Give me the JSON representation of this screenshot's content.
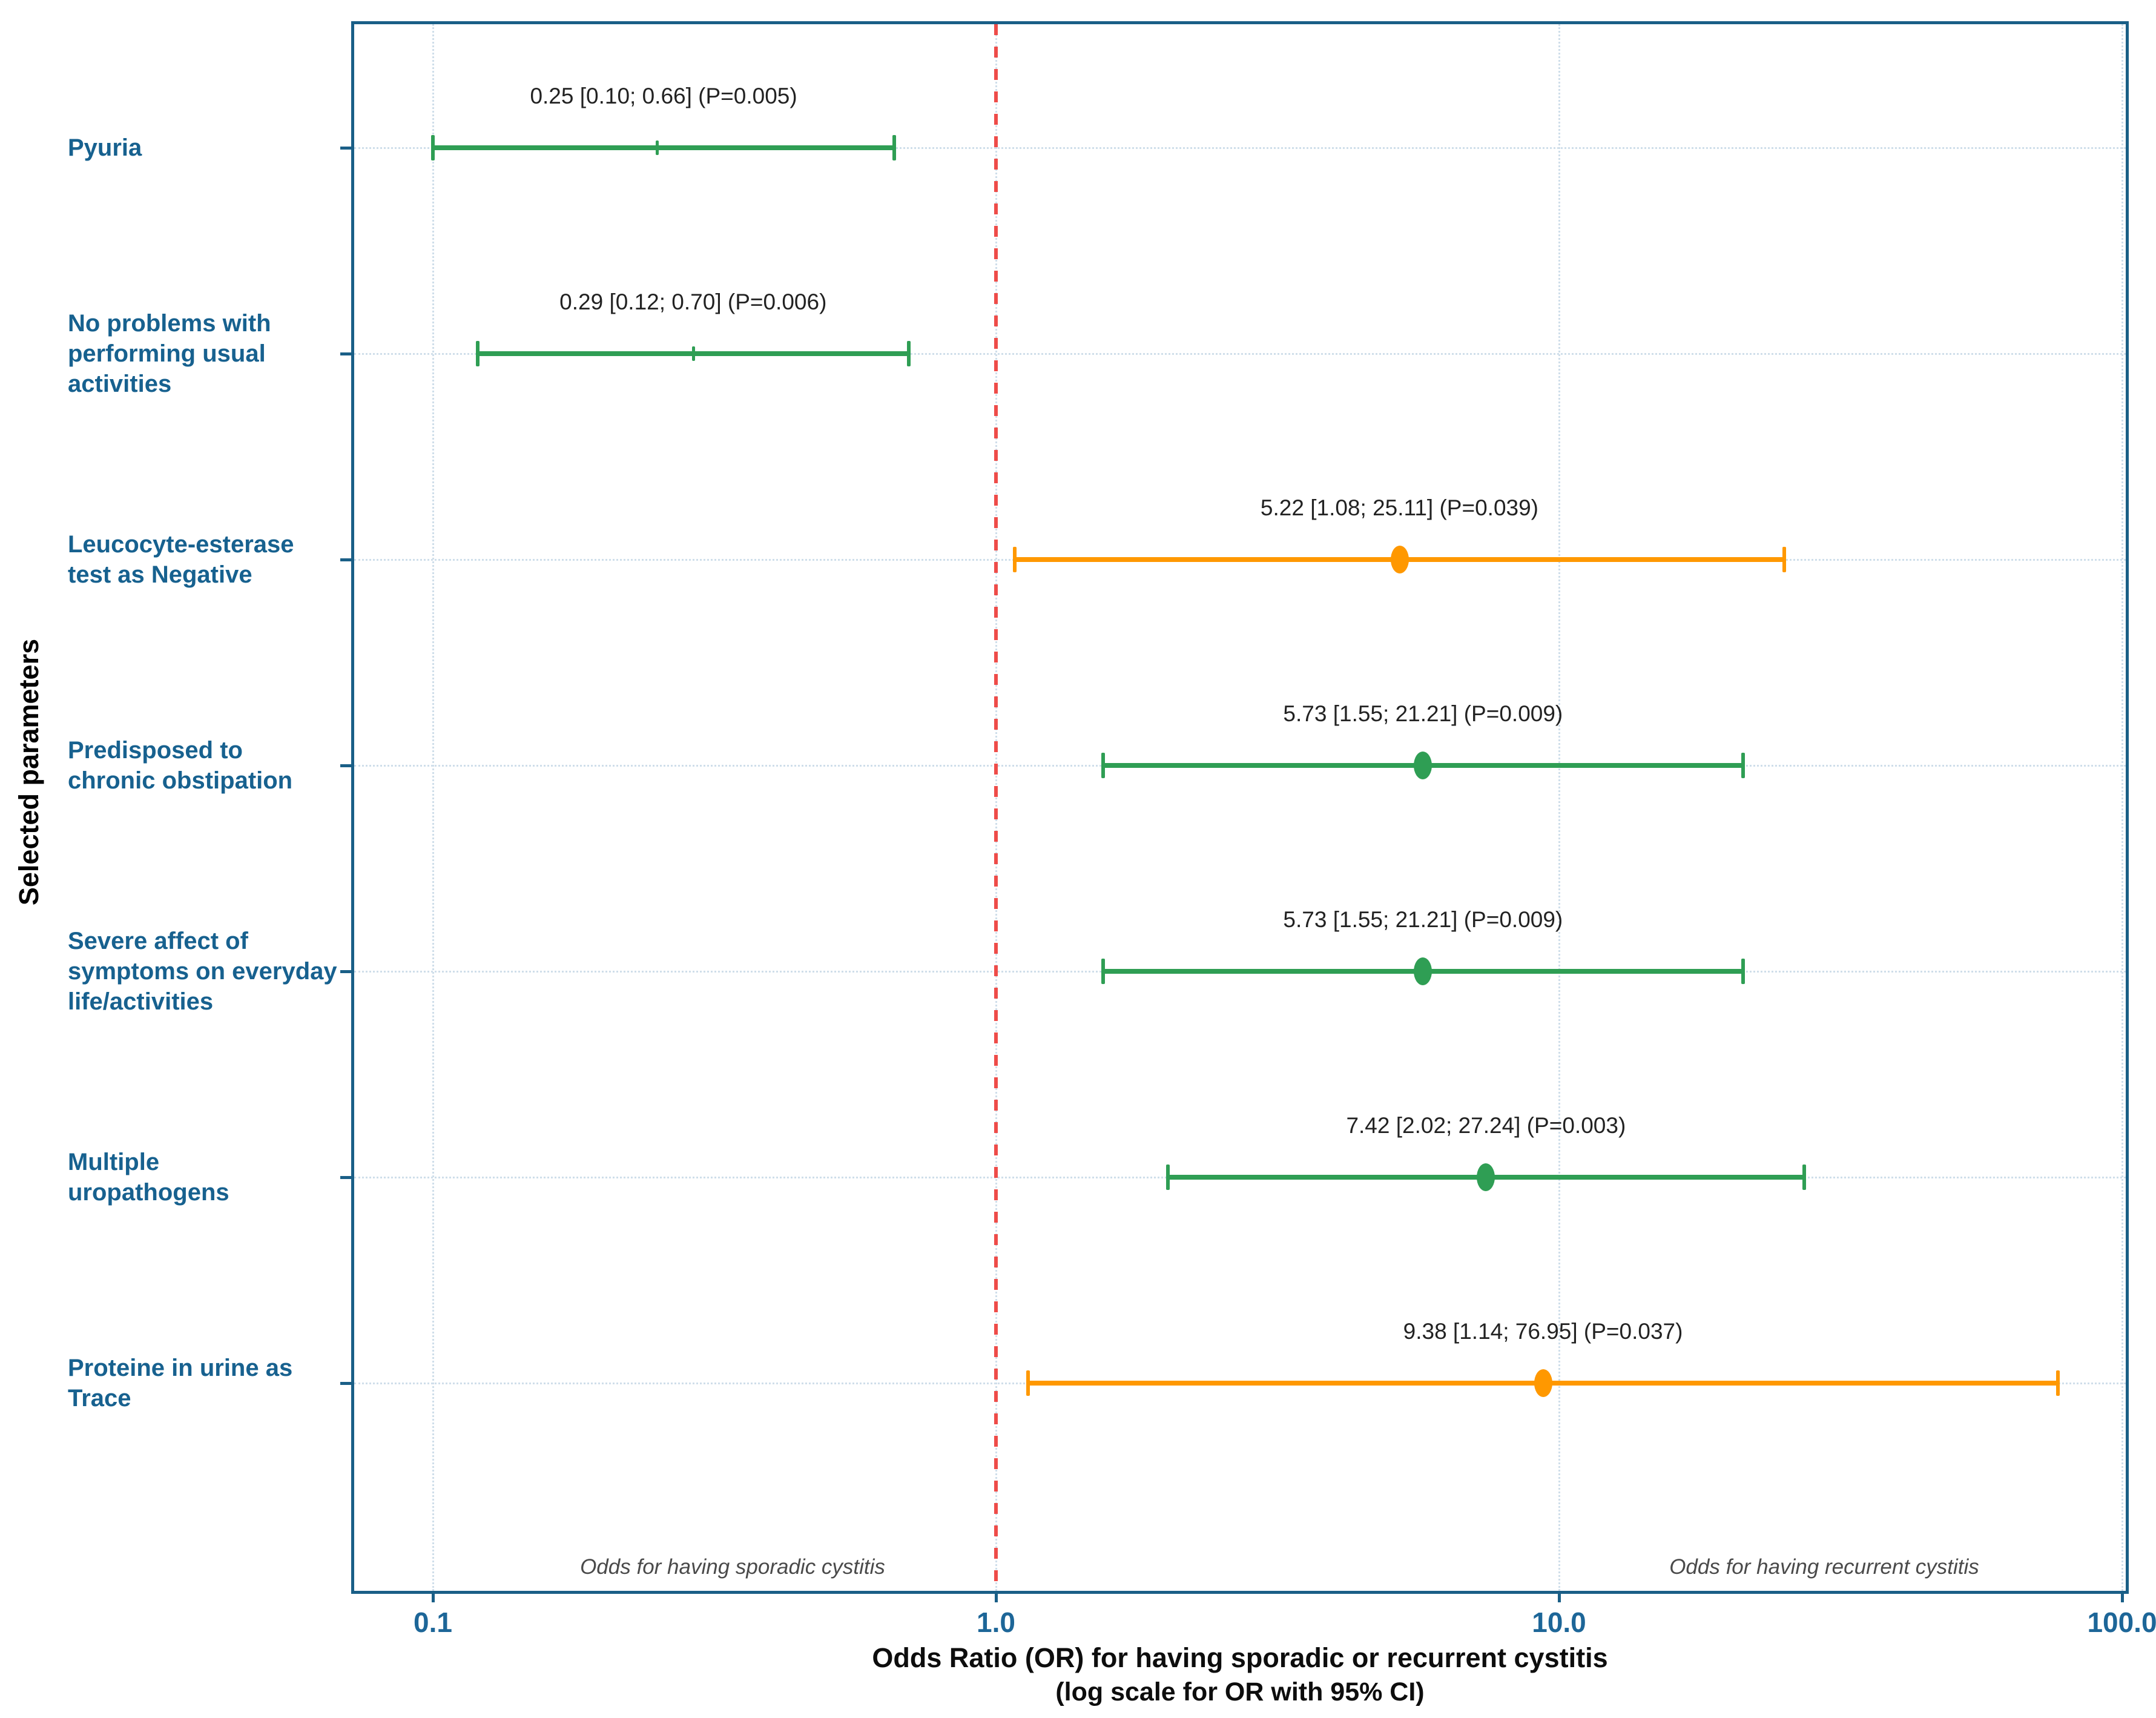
{
  "chart_data": {
    "type": "scatter",
    "subtype": "forest-plot",
    "title": "",
    "ylabel": "Selected parameters",
    "xlabel_line1": "Odds Ratio (OR) for having sporadic or recurrent cystitis",
    "xlabel_line2": "(log scale for OR with 95% CI)",
    "x_scale": "log10",
    "xlim": [
      0.07,
      102.5
    ],
    "grid": "dotted",
    "x_ticks": [
      {
        "value": 0.1,
        "label": "0.1"
      },
      {
        "value": 1.0,
        "label": "1.0"
      },
      {
        "value": 10.0,
        "label": "10.0"
      },
      {
        "value": 100.0,
        "label": "100.0"
      }
    ],
    "grid_x_values": [
      0.1,
      1.0,
      10.0,
      100.0
    ],
    "reference_line": {
      "value": 1.0,
      "style": "dashed"
    },
    "left_note": "Odds for having sporadic cystitis",
    "right_note": "Odds for having recurrent cystitis",
    "rows": [
      {
        "label": "Pyuria",
        "or": 0.25,
        "ci_low": 0.1,
        "ci_high": 0.66,
        "p": 0.005,
        "annotation": "0.25 [0.10; 0.66] (P=0.005)",
        "color": "green",
        "marker": "tick"
      },
      {
        "label": "No problems with\nperforming usual\nactivities",
        "or": 0.29,
        "ci_low": 0.12,
        "ci_high": 0.7,
        "p": 0.006,
        "annotation": "0.29 [0.12; 0.70] (P=0.006)",
        "color": "green",
        "marker": "tick"
      },
      {
        "label": "Leucocyte-esterase\ntest as Negative",
        "or": 5.22,
        "ci_low": 1.08,
        "ci_high": 25.11,
        "p": 0.039,
        "annotation": "5.22 [1.08; 25.11] (P=0.039)",
        "color": "orange",
        "marker": "dot"
      },
      {
        "label": "Predisposed to\nchronic obstipation",
        "or": 5.73,
        "ci_low": 1.55,
        "ci_high": 21.21,
        "p": 0.009,
        "annotation": "5.73 [1.55; 21.21] (P=0.009)",
        "color": "green",
        "marker": "dot"
      },
      {
        "label": "Severe affect of\nsymptoms on everyday\nlife/activities",
        "or": 5.73,
        "ci_low": 1.55,
        "ci_high": 21.21,
        "p": 0.009,
        "annotation": "5.73 [1.55; 21.21] (P=0.009)",
        "color": "green",
        "marker": "dot"
      },
      {
        "label": "Multiple\nuropathogens",
        "or": 7.42,
        "ci_low": 2.02,
        "ci_high": 27.24,
        "p": 0.003,
        "annotation": "7.42 [2.02; 27.24] (P=0.003)",
        "color": "green",
        "marker": "dot"
      },
      {
        "label": "Proteine in urine as\nTrace",
        "or": 9.38,
        "ci_low": 1.14,
        "ci_high": 76.95,
        "p": 0.037,
        "annotation": "9.38 [1.14; 76.95] (P=0.037)",
        "color": "orange",
        "marker": "dot"
      }
    ],
    "colors": {
      "green": "#2f9e54",
      "orange": "#ff9800",
      "red_reference": "#ee4c49",
      "axis_border_blue": "#1a5f87",
      "label_blue": "#17618f",
      "tick_label_blue": "#1d6698",
      "grid_light_blue": "#cfdeea"
    },
    "legend_position": "none"
  }
}
